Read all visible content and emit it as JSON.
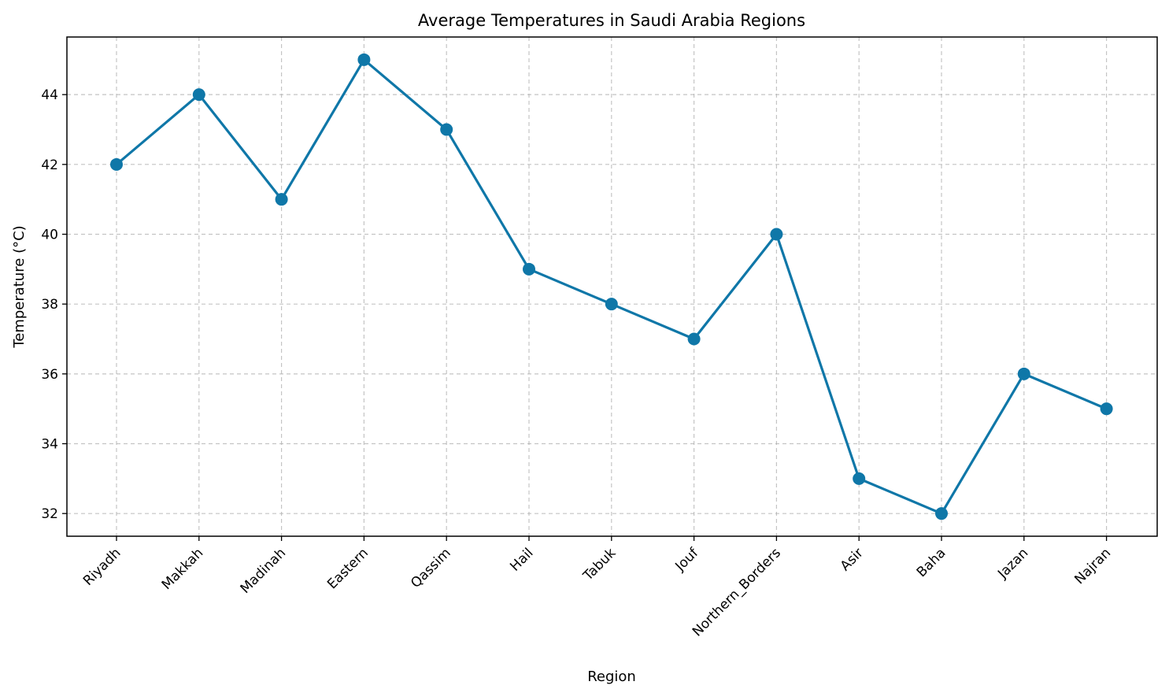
{
  "chart_data": {
    "type": "line",
    "title": "Average Temperatures in Saudi Arabia Regions",
    "xlabel": "Region",
    "ylabel": "Temperature (°C)",
    "categories": [
      "Riyadh",
      "Makkah",
      "Madinah",
      "Eastern",
      "Qassim",
      "Hail",
      "Tabuk",
      "Jouf",
      "Northern_Borders",
      "Asir",
      "Baha",
      "Jazan",
      "Najran"
    ],
    "series": [
      {
        "values": [
          42,
          44,
          41,
          45,
          43,
          39,
          38,
          37,
          40,
          33,
          32,
          36,
          35
        ],
        "color": "#0f77a8",
        "marker": "circle"
      }
    ],
    "ylim": [
      31.35,
      45.65
    ],
    "yticks": [
      32,
      34,
      36,
      38,
      40,
      42,
      44
    ],
    "grid": true,
    "grid_style": "dashed",
    "legend": "none"
  }
}
